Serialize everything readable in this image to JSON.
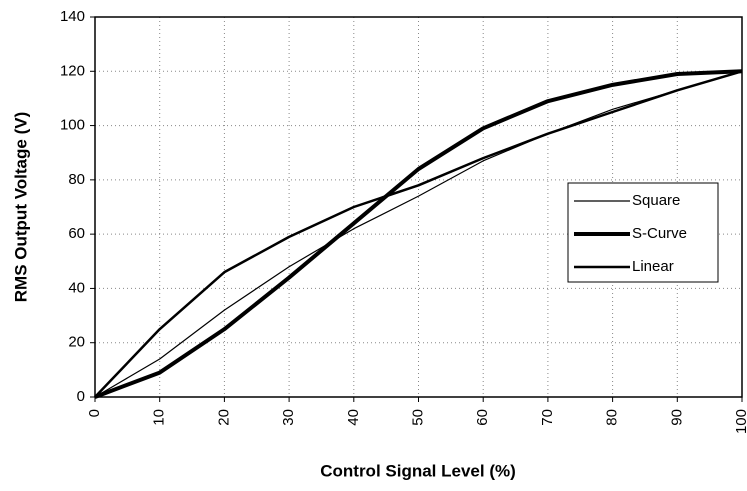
{
  "chart_data": {
    "type": "line",
    "x_label": "Control Signal Level (%)",
    "y_label": "RMS Output Voltage (V)",
    "x": [
      0,
      10,
      20,
      30,
      40,
      50,
      60,
      70,
      80,
      90,
      100
    ],
    "series": [
      {
        "name": "Square",
        "color": "#000000",
        "width": 1.2,
        "values": [
          0,
          14,
          32,
          48,
          62,
          74,
          87,
          97,
          106,
          113,
          120
        ]
      },
      {
        "name": "S-Curve",
        "color": "#000000",
        "width": 4,
        "values": [
          0,
          9,
          25,
          44,
          64,
          84,
          99,
          109,
          115,
          119,
          120
        ]
      },
      {
        "name": "Linear",
        "color": "#000000",
        "width": 2.5,
        "values": [
          0,
          25,
          46,
          59,
          70,
          78,
          88,
          97,
          105,
          113,
          120
        ]
      }
    ],
    "xlim": [
      0,
      100
    ],
    "xticks": [
      0,
      10,
      20,
      30,
      40,
      50,
      60,
      70,
      80,
      90,
      100
    ],
    "ylim": [
      0,
      140
    ],
    "yticks": [
      0,
      20,
      40,
      60,
      80,
      100,
      120,
      140
    ],
    "grid": true,
    "legend": "right"
  }
}
